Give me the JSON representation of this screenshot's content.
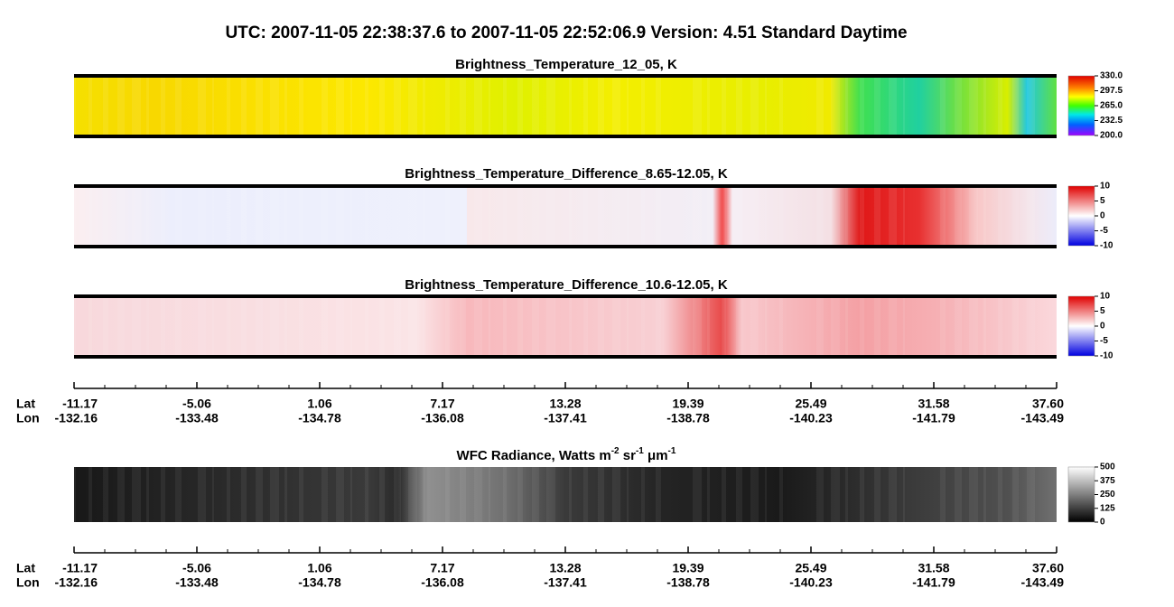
{
  "header": {
    "title": "UTC:  2007-11-05   22:38:37.6  to  2007-11-05   22:52:06.9    Version: 4.51  Standard Daytime"
  },
  "chart_data": [
    {
      "type": "heatmap",
      "title": [
        "Brightness_Temperature_12_05, K"
      ],
      "range": [
        200,
        330
      ],
      "colorbar_ticks": [
        {
          "value": 330,
          "label": "330.0"
        },
        {
          "value": 297.5,
          "label": "297.5"
        },
        {
          "value": 265,
          "label": "265.0"
        },
        {
          "value": 232.5,
          "label": "232.5"
        },
        {
          "value": 200,
          "label": "200.0"
        }
      ]
    },
    {
      "type": "heatmap",
      "title": [
        "Brightness_Temperature_Difference_8.65-12.05, K"
      ],
      "range": [
        -10,
        10
      ],
      "colorbar_ticks": [
        10,
        5,
        0,
        -5,
        -10
      ]
    },
    {
      "type": "heatmap",
      "title": [
        "Brightness_Temperature_Difference_10.6-12.05, K"
      ],
      "range": [
        -10,
        10
      ],
      "colorbar_ticks": [
        10,
        5,
        0,
        -5,
        -10
      ]
    },
    {
      "type": "heatmap",
      "title": [
        "WFC Radiance, Watts m",
        "-2",
        " sr",
        "-1",
        " μm",
        "-1"
      ],
      "range": [
        0,
        500
      ],
      "colorbar_ticks": [
        500,
        375,
        250,
        125,
        0
      ]
    }
  ],
  "axis": {
    "row_labels": [
      "Lat",
      "Lon"
    ],
    "lat": [
      "-11.17",
      "-5.06",
      "1.06",
      "7.17",
      "13.28",
      "19.39",
      "25.49",
      "31.58",
      "37.60"
    ],
    "lon": [
      "-132.16",
      "-133.48",
      "-134.78",
      "-136.08",
      "-137.41",
      "-138.78",
      "-140.23",
      "-141.79",
      "-143.49"
    ]
  }
}
